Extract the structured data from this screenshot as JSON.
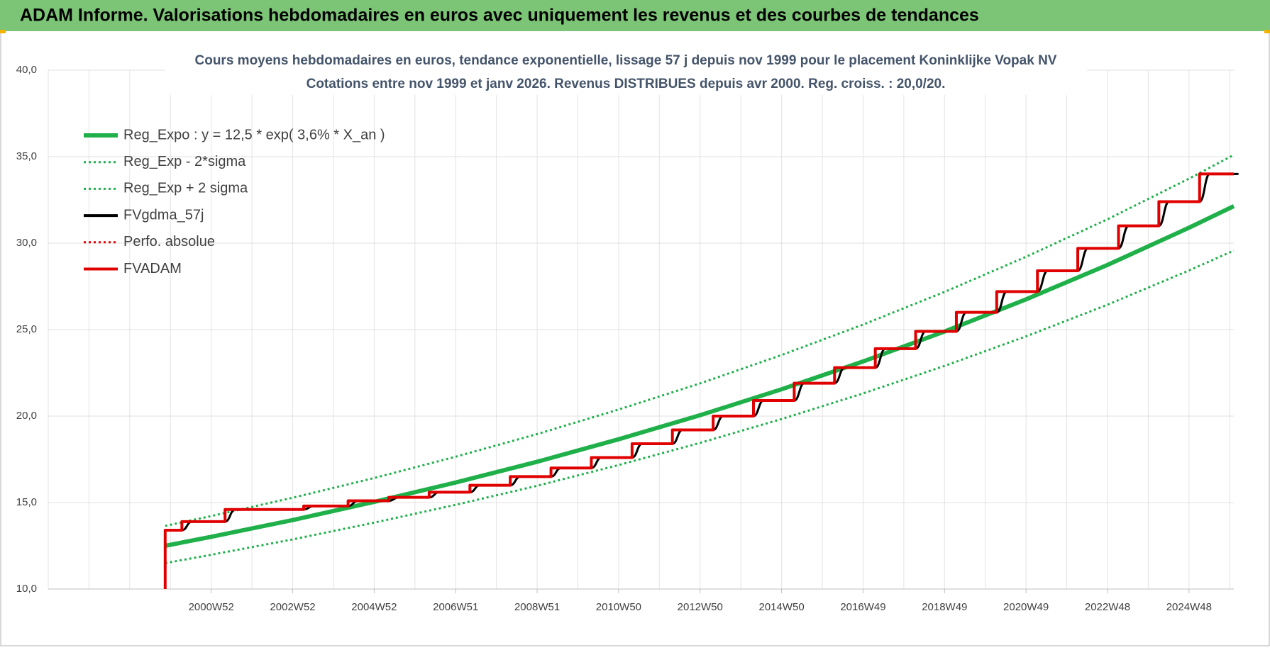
{
  "header": {
    "title": "ADAM Informe. Valorisations hebdomadaires en euros avec uniquement les revenus et des courbes de tendances"
  },
  "chart_data": {
    "type": "line",
    "title": "Cours moyens hebdomadaires en euros, tendance exponentielle, lissage 57 j depuis nov 1999  pour le placement Koninklijke Vopak NV",
    "subtitle": "Cotations entre nov 1999 et janv 2026. Revenus DISTRIBUES depuis avr 2000. Reg. croiss. : 20,0/20.",
    "xlim": [
      1997,
      2026.1
    ],
    "ylim": [
      10,
      40
    ],
    "yticks": [
      {
        "value": 10,
        "label": "10,0"
      },
      {
        "value": 15,
        "label": "15,0"
      },
      {
        "value": 20,
        "label": "20,0"
      },
      {
        "value": 25,
        "label": "25,0"
      },
      {
        "value": 30,
        "label": "30,0"
      },
      {
        "value": 35,
        "label": "35,0"
      },
      {
        "value": 40,
        "label": "40,0"
      }
    ],
    "xticks": [
      {
        "value": 2001,
        "label": "2000W52"
      },
      {
        "value": 2003,
        "label": "2002W52"
      },
      {
        "value": 2005,
        "label": "2004W52"
      },
      {
        "value": 2007,
        "label": "2006W51"
      },
      {
        "value": 2009,
        "label": "2008W51"
      },
      {
        "value": 2011,
        "label": "2010W50"
      },
      {
        "value": 2013,
        "label": "2012W50"
      },
      {
        "value": 2015,
        "label": "2014W50"
      },
      {
        "value": 2017,
        "label": "2016W49"
      },
      {
        "value": 2019,
        "label": "2018W49"
      },
      {
        "value": 2021,
        "label": "2020W49"
      },
      {
        "value": 2023,
        "label": "2022W48"
      },
      {
        "value": 2025,
        "label": "2024W48"
      }
    ],
    "x_gridlines": [
      1997,
      1998,
      1999,
      2000,
      2001,
      2002,
      2003,
      2004,
      2005,
      2006,
      2007,
      2008,
      2009,
      2010,
      2011,
      2012,
      2013,
      2014,
      2015,
      2016,
      2017,
      2018,
      2019,
      2020,
      2021,
      2022,
      2023,
      2024,
      2025,
      2026
    ],
    "grid": true,
    "legend": "top-left",
    "series": [
      {
        "name": "Reg_Expo : y = 12,5 * exp( 3,6% *  X_an )",
        "color": "#1fb04a",
        "style": "solid",
        "width": 6,
        "step": "none",
        "x": [
          1999.87,
          2001,
          2003,
          2005,
          2007,
          2009,
          2011,
          2013,
          2015,
          2017,
          2019,
          2021,
          2023,
          2025,
          2026.1
        ],
        "values": [
          12.5,
          13.02,
          13.99,
          15.04,
          16.16,
          17.36,
          18.66,
          20.05,
          21.55,
          23.16,
          24.89,
          26.75,
          28.74,
          30.89,
          32.14
        ]
      },
      {
        "name": "Reg_Exp - 2*sigma",
        "color": "#1fb04a",
        "style": "dotted",
        "width": 3,
        "step": "none",
        "x": [
          1999.87,
          2001,
          2003,
          2005,
          2007,
          2009,
          2011,
          2013,
          2015,
          2017,
          2019,
          2021,
          2023,
          2025,
          2026.1
        ],
        "values": [
          11.5,
          11.98,
          12.87,
          13.84,
          14.87,
          15.97,
          17.17,
          18.45,
          19.83,
          21.31,
          22.9,
          24.61,
          26.44,
          28.42,
          29.57
        ]
      },
      {
        "name": "Reg_Exp + 2 sigma",
        "color": "#1fb04a",
        "style": "dotted",
        "width": 3,
        "step": "none",
        "x": [
          1999.87,
          2001,
          2003,
          2005,
          2007,
          2009,
          2011,
          2013,
          2015,
          2017,
          2019,
          2021,
          2023,
          2025,
          2026.1
        ],
        "values": [
          13.65,
          14.22,
          15.28,
          16.42,
          17.65,
          18.96,
          20.38,
          21.89,
          23.53,
          25.29,
          27.18,
          29.21,
          31.38,
          33.73,
          35.1
        ]
      },
      {
        "name": "FVgdma_57j",
        "color": "#000000",
        "style": "solid",
        "width": 3,
        "step": "smooth",
        "x": [
          1999.87,
          2000.28,
          2001.34,
          2003.27,
          2004.36,
          2005.36,
          2006.35,
          2007.35,
          2008.34,
          2009.34,
          2010.33,
          2011.33,
          2012.32,
          2013.32,
          2014.31,
          2015.31,
          2016.3,
          2017.3,
          2018.29,
          2019.29,
          2020.28,
          2021.28,
          2022.27,
          2023.27,
          2024.26,
          2025.26,
          2026.1
        ],
        "values": [
          13.4,
          13.9,
          14.6,
          14.8,
          15.1,
          15.3,
          15.6,
          16.0,
          16.5,
          17.0,
          17.6,
          18.4,
          19.2,
          20.0,
          20.9,
          21.9,
          22.8,
          23.9,
          24.9,
          26.0,
          27.2,
          28.4,
          29.7,
          31.0,
          32.4,
          34.0,
          34.0
        ]
      },
      {
        "name": "Perfo. absolue",
        "color": "#e00000",
        "style": "dotted",
        "width": 2,
        "step": "none",
        "x": [],
        "values": []
      },
      {
        "name": "FVADAM",
        "color": "#e00000",
        "style": "solid",
        "width": 4,
        "step": "after",
        "x": [
          1999.87,
          1999.87,
          2000.28,
          2001.34,
          2003.27,
          2004.36,
          2005.36,
          2006.35,
          2007.35,
          2008.34,
          2009.34,
          2010.33,
          2011.33,
          2012.32,
          2013.32,
          2014.31,
          2015.31,
          2016.3,
          2017.3,
          2018.29,
          2019.29,
          2020.28,
          2021.28,
          2022.27,
          2023.27,
          2024.26,
          2025.26,
          2026.1
        ],
        "values": [
          10,
          13.4,
          13.9,
          14.6,
          14.8,
          15.1,
          15.3,
          15.6,
          16.0,
          16.5,
          17.0,
          17.6,
          18.4,
          19.2,
          20.0,
          20.9,
          21.9,
          22.8,
          23.9,
          24.9,
          26.0,
          27.2,
          28.4,
          29.7,
          31.0,
          32.4,
          34.0,
          34.0
        ]
      }
    ]
  }
}
